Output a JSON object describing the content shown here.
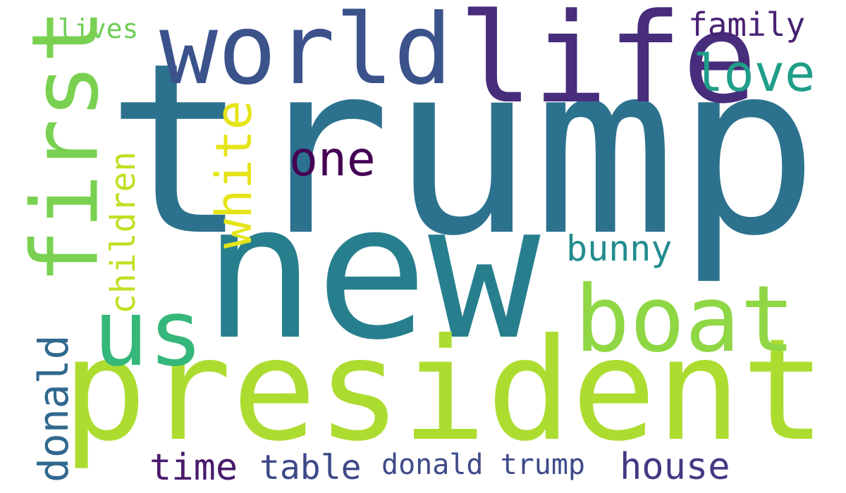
{
  "word_cloud": {
    "words": [
      {
        "id": "trump",
        "text": "trump",
        "color": "#2c728e"
      },
      {
        "id": "new",
        "text": "new",
        "color": "#277f8e"
      },
      {
        "id": "president",
        "text": "president",
        "color": "#addc30"
      },
      {
        "id": "world",
        "text": "world",
        "color": "#3b528b"
      },
      {
        "id": "life",
        "text": "life",
        "color": "#472d7b"
      },
      {
        "id": "first",
        "text": "first",
        "color": "#7ad151"
      },
      {
        "id": "boat",
        "text": "boat",
        "color": "#8fd744"
      },
      {
        "id": "us",
        "text": "us",
        "color": "#35b779"
      },
      {
        "id": "one",
        "text": "one",
        "color": "#440154"
      },
      {
        "id": "white",
        "text": "white",
        "color": "#e5e419"
      },
      {
        "id": "children",
        "text": "children",
        "color": "#c2df23"
      },
      {
        "id": "love",
        "text": "love",
        "color": "#1f9e89"
      },
      {
        "id": "family",
        "text": "family",
        "color": "#482173"
      },
      {
        "id": "lives",
        "text": "lives",
        "color": "#6ece58"
      },
      {
        "id": "bunny",
        "text": "bunny",
        "color": "#228c8d"
      },
      {
        "id": "donald-vertical",
        "text": "donald",
        "color": "#31688e"
      },
      {
        "id": "time",
        "text": "time",
        "color": "#481a6c"
      },
      {
        "id": "table",
        "text": "table",
        "color": "#3e4989"
      },
      {
        "id": "donald-trump",
        "text": "donald trump",
        "color": "#3e4a89"
      },
      {
        "id": "house",
        "text": "house",
        "color": "#443983"
      }
    ]
  }
}
